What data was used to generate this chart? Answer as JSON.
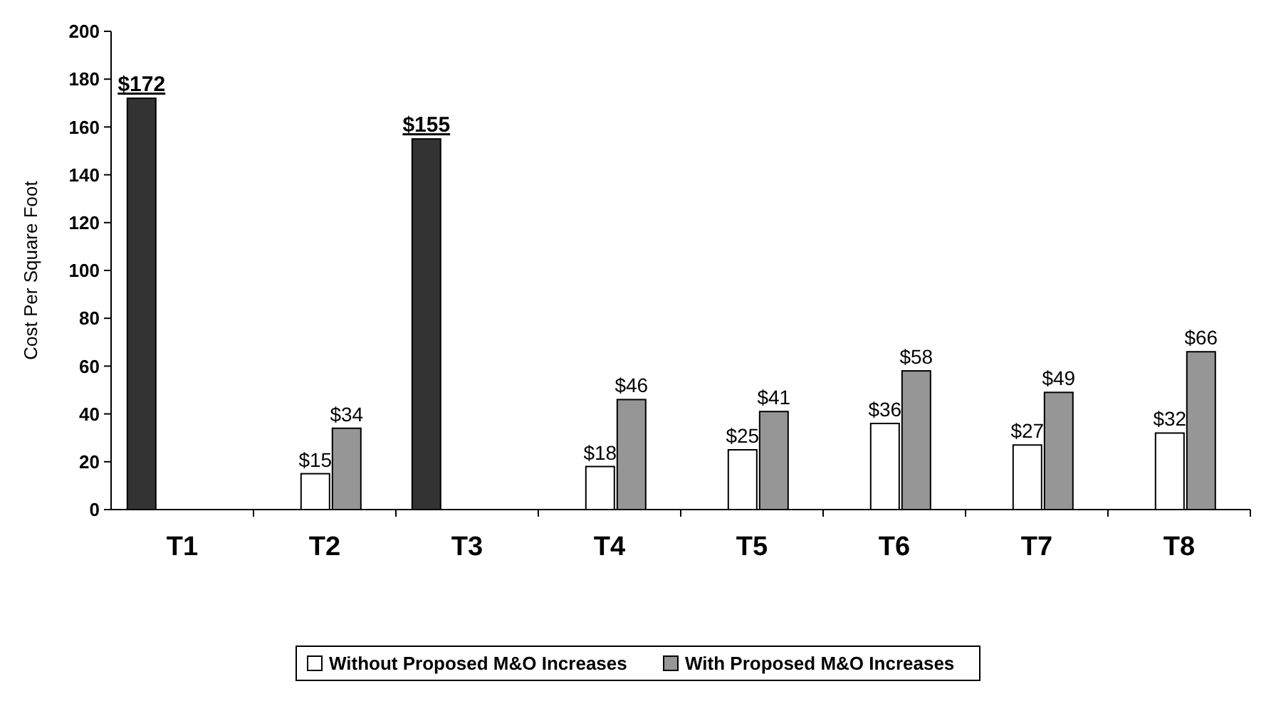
{
  "chart_data": {
    "type": "bar",
    "ylabel": "Cost Per Square Foot",
    "categories": [
      "T1",
      "T2",
      "T3",
      "T4",
      "T5",
      "T6",
      "T7",
      "T8"
    ],
    "series": [
      {
        "color": "#333333",
        "values": [
          172,
          null,
          155,
          null,
          null,
          null,
          null,
          null
        ],
        "value_labels": [
          "$172",
          null,
          "$155",
          null,
          null,
          null,
          null,
          null
        ]
      },
      {
        "name": "Without Proposed M&O Increases",
        "color": "#ffffff",
        "values": [
          null,
          15,
          null,
          18,
          25,
          36,
          27,
          32
        ],
        "value_labels": [
          null,
          "$15",
          null,
          "$18",
          "$25",
          "$36",
          "$27",
          "$32"
        ]
      },
      {
        "name": "With Proposed M&O Increases",
        "color": "#969696",
        "values": [
          null,
          34,
          null,
          46,
          41,
          58,
          49,
          66
        ],
        "value_labels": [
          null,
          "$34",
          null,
          "$46",
          "$41",
          "$58",
          "$49",
          "$66"
        ]
      }
    ],
    "ylim": [
      0,
      200
    ],
    "yticks": [
      0,
      20,
      40,
      60,
      80,
      100,
      120,
      140,
      160,
      180,
      200
    ],
    "grid": false,
    "legend": "bottom"
  }
}
